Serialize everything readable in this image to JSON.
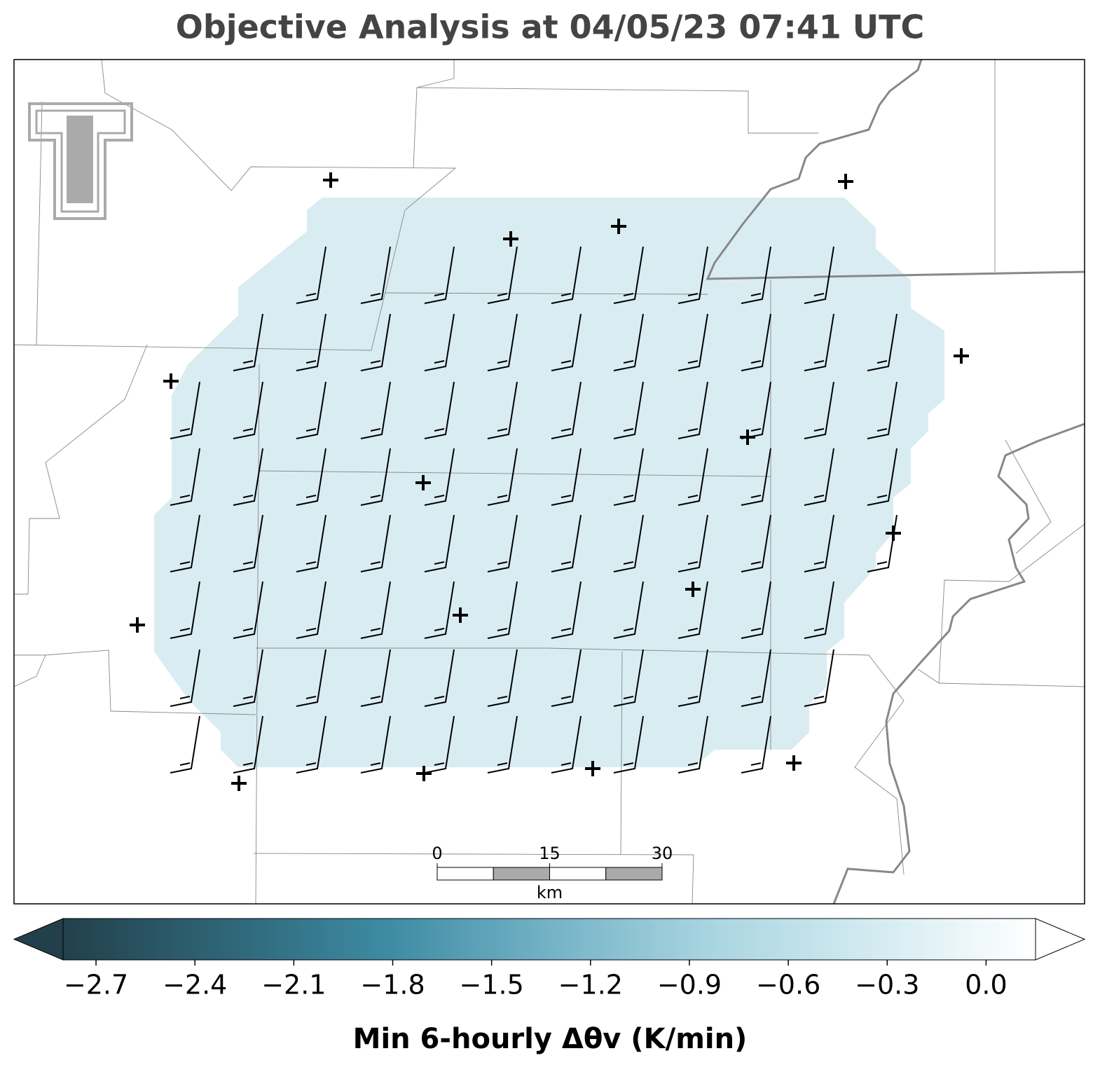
{
  "title": "Objective Analysis at 04/05/23 07:41 UTC",
  "colorbar": {
    "label": "Min 6-hourly Δθv (K/min)",
    "range": [
      -2.8,
      0.15
    ],
    "ticks": [
      {
        "value": -2.7,
        "label": "−2.7"
      },
      {
        "value": -2.4,
        "label": "−2.4"
      },
      {
        "value": -2.1,
        "label": "−2.1"
      },
      {
        "value": -1.8,
        "label": "−1.8"
      },
      {
        "value": -1.5,
        "label": "−1.5"
      },
      {
        "value": -1.2,
        "label": "−1.2"
      },
      {
        "value": -0.9,
        "label": "−0.9"
      },
      {
        "value": -0.6,
        "label": "−0.6"
      },
      {
        "value": -0.3,
        "label": "−0.3"
      },
      {
        "value": 0.0,
        "label": "0.0"
      }
    ],
    "colormap": [
      "#22404b",
      "#2f6577",
      "#3d8ba3",
      "#74b2c6",
      "#a9d5e1",
      "#d3ebf1",
      "#ffffff"
    ]
  },
  "scale_bar": {
    "ticks": [
      0,
      15,
      30
    ],
    "unit": "km"
  }
}
